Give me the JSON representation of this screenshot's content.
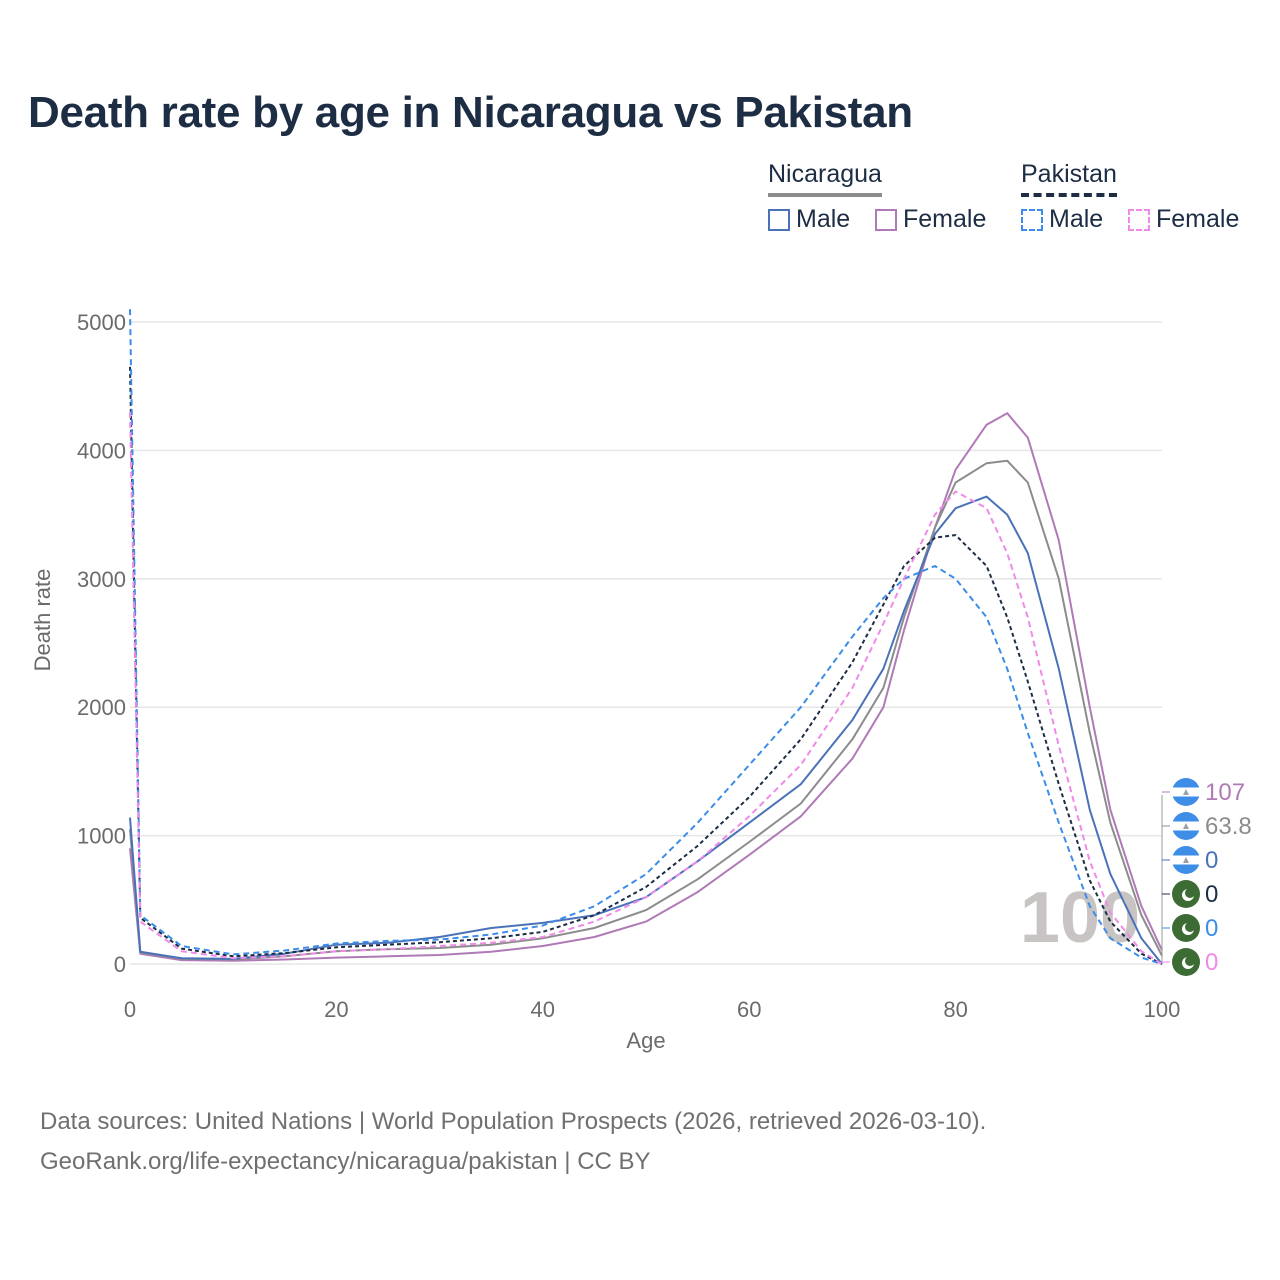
{
  "title": "Death rate by age in Nicaragua vs Pakistan",
  "legend": {
    "groups": [
      {
        "name": "Nicaragua",
        "items": [
          "Male",
          "Female"
        ]
      },
      {
        "name": "Pakistan",
        "items": [
          "Male",
          "Female"
        ]
      }
    ]
  },
  "colors": {
    "nic_male": "#4a72b8",
    "nic_female": "#b07ab7",
    "nic_total": "#8c8c8c",
    "pak_male": "#3b8de8",
    "pak_female": "#f08ae8",
    "pak_total": "#1d2d44",
    "nic_flag": "#3e8ee8",
    "pak_flag": "#3c6b34"
  },
  "chart_data": {
    "type": "line",
    "title": "Death rate by age in Nicaragua vs Pakistan",
    "xlabel": "Age",
    "ylabel": "Death rate",
    "xlim": [
      0,
      100
    ],
    "ylim": [
      0,
      5000
    ],
    "xticks": [
      0,
      20,
      40,
      60,
      80,
      100
    ],
    "yticks": [
      0,
      1000,
      2000,
      3000,
      4000,
      5000
    ],
    "x": [
      0,
      1,
      5,
      10,
      15,
      20,
      25,
      30,
      35,
      40,
      45,
      50,
      55,
      60,
      65,
      70,
      73,
      75,
      78,
      80,
      83,
      85,
      87,
      90,
      93,
      95,
      98,
      100
    ],
    "series": [
      {
        "key": "nic_female",
        "name": "Nicaragua Female",
        "dashed": false,
        "values": [
          900,
          80,
          30,
          25,
          35,
          50,
          60,
          70,
          95,
          140,
          210,
          330,
          560,
          850,
          1150,
          1600,
          2000,
          2600,
          3400,
          3850,
          4200,
          4290,
          4100,
          3300,
          2000,
          1200,
          450,
          107
        ]
      },
      {
        "key": "nic_total",
        "name": "Nicaragua",
        "dashed": false,
        "values": [
          1050,
          90,
          40,
          35,
          60,
          100,
          115,
          125,
          150,
          200,
          280,
          420,
          660,
          950,
          1250,
          1750,
          2150,
          2700,
          3400,
          3750,
          3900,
          3920,
          3750,
          3000,
          1800,
          1100,
          380,
          63.8
        ]
      },
      {
        "key": "nic_male",
        "name": "Nicaragua Male",
        "dashed": false,
        "values": [
          1140,
          95,
          45,
          40,
          80,
          150,
          165,
          210,
          280,
          320,
          380,
          520,
          800,
          1100,
          1400,
          1900,
          2300,
          2750,
          3350,
          3550,
          3640,
          3500,
          3200,
          2300,
          1200,
          700,
          200,
          0
        ]
      },
      {
        "key": "pak_total",
        "name": "Pakistan",
        "dashed": false,
        "dashedStyle": "4,3",
        "values": [
          4650,
          360,
          120,
          60,
          85,
          130,
          150,
          170,
          200,
          250,
          380,
          600,
          920,
          1300,
          1750,
          2350,
          2800,
          3100,
          3320,
          3340,
          3100,
          2700,
          2200,
          1400,
          650,
          330,
          80,
          0
        ]
      },
      {
        "key": "pak_male",
        "name": "Pakistan Male",
        "dashed": true,
        "values": [
          5100,
          380,
          140,
          75,
          105,
          160,
          180,
          190,
          230,
          300,
          450,
          700,
          1100,
          1550,
          2000,
          2550,
          2850,
          3000,
          3100,
          3000,
          2700,
          2300,
          1800,
          1100,
          450,
          200,
          50,
          0
        ]
      },
      {
        "key": "pak_female",
        "name": "Pakistan Female",
        "dashed": true,
        "values": [
          4300,
          330,
          100,
          45,
          60,
          100,
          115,
          140,
          165,
          210,
          330,
          520,
          800,
          1150,
          1550,
          2150,
          2650,
          3000,
          3500,
          3680,
          3550,
          3200,
          2700,
          1700,
          800,
          400,
          100,
          0
        ]
      }
    ],
    "end_labels": [
      {
        "key": "nic_female",
        "text": "107",
        "flag": "nic"
      },
      {
        "key": "nic_total",
        "text": "63.8",
        "flag": "nic"
      },
      {
        "key": "nic_male",
        "text": "0",
        "flag": "nic"
      },
      {
        "key": "pak_total",
        "text": "0",
        "flag": "pak"
      },
      {
        "key": "pak_male",
        "text": "0",
        "flag": "pak"
      },
      {
        "key": "pak_female",
        "text": "0",
        "flag": "pak"
      }
    ],
    "watermark": "100"
  },
  "footer": {
    "line1": "Data sources: United Nations | World Population Prospects (2026, retrieved 2026-03-10).",
    "line2": "GeoRank.org/life-expectancy/nicaragua/pakistan | CC BY"
  }
}
